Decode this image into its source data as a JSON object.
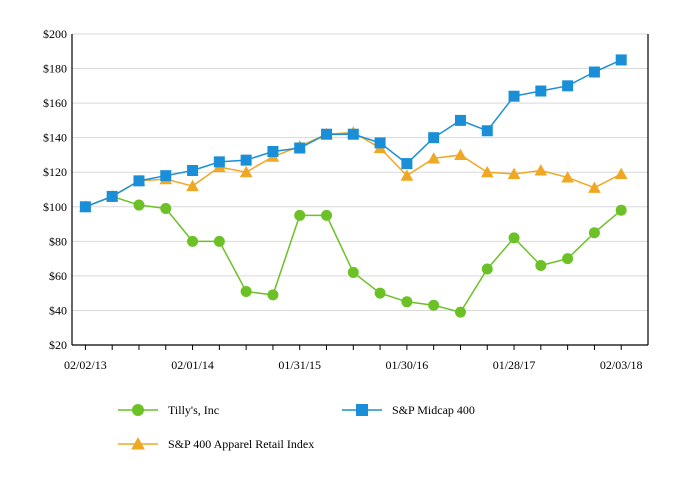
{
  "chart_data": {
    "type": "line",
    "x": [
      "02/02/13",
      "05/04/13",
      "08/03/13",
      "11/02/13",
      "02/01/14",
      "05/03/14",
      "08/02/14",
      "11/01/14",
      "01/31/15",
      "05/02/15",
      "08/01/15",
      "10/31/15",
      "01/30/16",
      "04/30/16",
      "07/30/16",
      "10/29/16",
      "01/28/17",
      "04/29/17",
      "07/29/17",
      "10/28/17",
      "02/03/18"
    ],
    "x_tick_labels": [
      "02/02/13",
      "02/01/14",
      "01/31/15",
      "01/30/16",
      "01/28/17",
      "02/03/18"
    ],
    "series": [
      {
        "name": "Tilly's, Inc",
        "color": "#6cc126",
        "marker": "circle",
        "values": [
          100,
          106,
          101,
          99,
          80,
          80,
          51,
          49,
          95,
          95,
          62,
          50,
          45,
          43,
          39,
          64,
          82,
          66,
          70,
          85,
          98
        ]
      },
      {
        "name": "S&P Midcap 400",
        "color": "#1a8fd8",
        "marker": "square",
        "values": [
          100,
          106,
          115,
          118,
          121,
          126,
          127,
          132,
          134,
          142,
          142,
          137,
          125,
          140,
          150,
          144,
          164,
          167,
          170,
          178,
          185
        ]
      },
      {
        "name": "S&P 400 Apparel Retail Index",
        "color": "#f0a824",
        "marker": "triangle",
        "values": [
          100,
          106,
          115,
          116,
          112,
          123,
          120,
          129,
          135,
          142,
          143,
          134,
          118,
          128,
          130,
          120,
          119,
          121,
          117,
          111,
          119
        ]
      }
    ],
    "y_ticks": [
      "$200",
      "$180",
      "$160",
      "$140",
      "$120",
      "$100",
      "$80",
      "$60",
      "$40",
      "$20"
    ],
    "ylim": [
      20,
      200
    ],
    "grid": true,
    "legend": "bottom"
  }
}
